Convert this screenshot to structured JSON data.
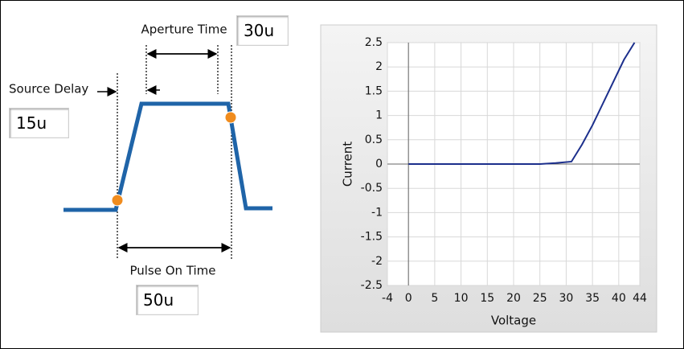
{
  "diagram": {
    "aperture_time": {
      "label": "Aperture Time",
      "value": "30u"
    },
    "source_delay": {
      "label": "Source Delay",
      "value": "15u"
    },
    "pulse_on_time": {
      "label": "Pulse On Time",
      "value": "50u"
    }
  },
  "chart_data": {
    "type": "line",
    "x_label": "Voltage",
    "y_label": "Current",
    "x": [
      0,
      5,
      10,
      15,
      20,
      25,
      28,
      31,
      33,
      35,
      37,
      39,
      41,
      43
    ],
    "series": [
      {
        "name": "Current",
        "color": "#1c2f8c",
        "values": [
          0,
          0,
          0,
          0,
          0,
          0,
          0.02,
          0.05,
          0.4,
          0.8,
          1.25,
          1.7,
          2.15,
          2.5
        ]
      }
    ],
    "xlim": [
      -4,
      44
    ],
    "ylim": [
      -2.5,
      2.5
    ],
    "xticks": [
      -4,
      0,
      5,
      10,
      15,
      20,
      25,
      30,
      35,
      40,
      44
    ],
    "yticks": [
      -2.5,
      -2,
      -1.5,
      -1,
      -0.5,
      0,
      0.5,
      1,
      1.5,
      2,
      2.5
    ],
    "grid": true
  }
}
